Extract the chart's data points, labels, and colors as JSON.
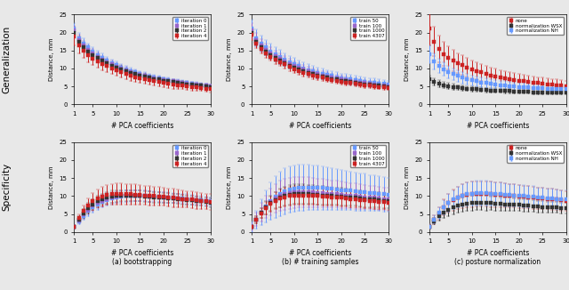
{
  "x": [
    1,
    2,
    3,
    4,
    5,
    6,
    7,
    8,
    9,
    10,
    11,
    12,
    13,
    14,
    15,
    16,
    17,
    18,
    19,
    20,
    21,
    22,
    23,
    24,
    25,
    26,
    27,
    28,
    29,
    30
  ],
  "gen_iter0_mean": [
    21.0,
    18.5,
    17.0,
    15.8,
    14.8,
    13.8,
    13.0,
    12.2,
    11.5,
    10.9,
    10.3,
    9.8,
    9.3,
    8.9,
    8.5,
    8.1,
    7.8,
    7.5,
    7.2,
    6.9,
    6.7,
    6.5,
    6.3,
    6.1,
    5.9,
    5.7,
    5.6,
    5.4,
    5.3,
    5.1
  ],
  "gen_iter0_err": [
    1.5,
    1.4,
    1.3,
    1.2,
    1.2,
    1.1,
    1.1,
    1.0,
    1.0,
    1.0,
    0.9,
    0.9,
    0.9,
    0.8,
    0.8,
    0.8,
    0.7,
    0.7,
    0.7,
    0.7,
    0.7,
    0.6,
    0.6,
    0.6,
    0.6,
    0.6,
    0.6,
    0.6,
    0.5,
    0.5
  ],
  "gen_iter1_mean": [
    20.5,
    18.0,
    16.5,
    15.3,
    14.3,
    13.3,
    12.5,
    11.8,
    11.1,
    10.5,
    10.0,
    9.5,
    9.0,
    8.6,
    8.2,
    7.9,
    7.6,
    7.3,
    7.0,
    6.8,
    6.6,
    6.4,
    6.2,
    6.0,
    5.8,
    5.6,
    5.5,
    5.3,
    5.2,
    5.0
  ],
  "gen_iter1_err": [
    1.4,
    1.3,
    1.2,
    1.2,
    1.1,
    1.1,
    1.0,
    1.0,
    1.0,
    0.9,
    0.9,
    0.9,
    0.8,
    0.8,
    0.8,
    0.8,
    0.7,
    0.7,
    0.7,
    0.7,
    0.7,
    0.6,
    0.6,
    0.6,
    0.6,
    0.6,
    0.6,
    0.5,
    0.5,
    0.5
  ],
  "gen_iter2_mean": [
    20.0,
    17.5,
    16.0,
    14.8,
    13.8,
    13.0,
    12.2,
    11.5,
    10.8,
    10.2,
    9.7,
    9.2,
    8.8,
    8.4,
    8.0,
    7.7,
    7.4,
    7.1,
    6.9,
    6.6,
    6.4,
    6.2,
    6.0,
    5.8,
    5.6,
    5.5,
    5.3,
    5.2,
    5.0,
    4.9
  ],
  "gen_iter2_err": [
    1.3,
    1.2,
    1.2,
    1.1,
    1.1,
    1.0,
    1.0,
    1.0,
    0.9,
    0.9,
    0.9,
    0.8,
    0.8,
    0.8,
    0.8,
    0.7,
    0.7,
    0.7,
    0.7,
    0.6,
    0.6,
    0.6,
    0.6,
    0.6,
    0.6,
    0.5,
    0.5,
    0.5,
    0.5,
    0.5
  ],
  "gen_iter4_mean": [
    19.0,
    16.5,
    15.0,
    13.8,
    12.8,
    12.0,
    11.3,
    10.6,
    10.0,
    9.4,
    8.9,
    8.4,
    8.0,
    7.6,
    7.3,
    7.0,
    6.7,
    6.4,
    6.2,
    5.9,
    5.7,
    5.5,
    5.4,
    5.2,
    5.0,
    4.9,
    4.7,
    4.6,
    4.4,
    4.3
  ],
  "gen_iter4_err": [
    2.5,
    2.3,
    2.1,
    2.0,
    1.9,
    1.8,
    1.7,
    1.7,
    1.6,
    1.5,
    1.5,
    1.4,
    1.4,
    1.3,
    1.3,
    1.3,
    1.2,
    1.2,
    1.2,
    1.1,
    1.1,
    1.1,
    1.0,
    1.0,
    1.0,
    1.0,
    1.0,
    0.9,
    0.9,
    0.9
  ],
  "gen_train50_mean": [
    21.0,
    18.5,
    17.0,
    15.8,
    14.8,
    14.0,
    13.2,
    12.5,
    11.8,
    11.2,
    10.6,
    10.1,
    9.6,
    9.2,
    8.8,
    8.5,
    8.2,
    7.9,
    7.6,
    7.3,
    7.1,
    6.9,
    6.7,
    6.5,
    6.3,
    6.1,
    6.0,
    5.8,
    5.7,
    5.5
  ],
  "gen_train50_err": [
    2.5,
    2.3,
    2.2,
    2.1,
    2.0,
    1.9,
    1.9,
    1.8,
    1.7,
    1.7,
    1.6,
    1.6,
    1.5,
    1.5,
    1.5,
    1.4,
    1.4,
    1.4,
    1.3,
    1.3,
    1.3,
    1.3,
    1.2,
    1.2,
    1.2,
    1.2,
    1.2,
    1.1,
    1.1,
    1.1
  ],
  "gen_train100_mean": [
    20.5,
    18.0,
    16.5,
    15.3,
    14.3,
    13.5,
    12.7,
    12.0,
    11.3,
    10.7,
    10.2,
    9.7,
    9.2,
    8.8,
    8.4,
    8.1,
    7.8,
    7.5,
    7.2,
    6.9,
    6.7,
    6.5,
    6.3,
    6.1,
    5.9,
    5.7,
    5.6,
    5.4,
    5.3,
    5.1
  ],
  "gen_train100_err": [
    2.0,
    1.8,
    1.7,
    1.6,
    1.6,
    1.5,
    1.5,
    1.4,
    1.4,
    1.3,
    1.3,
    1.2,
    1.2,
    1.2,
    1.1,
    1.1,
    1.1,
    1.0,
    1.0,
    1.0,
    1.0,
    0.9,
    0.9,
    0.9,
    0.9,
    0.9,
    0.8,
    0.8,
    0.8,
    0.8
  ],
  "gen_train1000_mean": [
    20.0,
    17.5,
    16.0,
    14.8,
    13.8,
    13.0,
    12.2,
    11.5,
    10.8,
    10.2,
    9.7,
    9.2,
    8.8,
    8.4,
    8.0,
    7.7,
    7.4,
    7.1,
    6.9,
    6.6,
    6.4,
    6.2,
    6.0,
    5.8,
    5.6,
    5.5,
    5.3,
    5.2,
    5.0,
    4.9
  ],
  "gen_train1000_err": [
    1.2,
    1.1,
    1.1,
    1.0,
    1.0,
    1.0,
    0.9,
    0.9,
    0.9,
    0.8,
    0.8,
    0.8,
    0.8,
    0.7,
    0.7,
    0.7,
    0.7,
    0.7,
    0.6,
    0.6,
    0.6,
    0.6,
    0.6,
    0.6,
    0.5,
    0.5,
    0.5,
    0.5,
    0.5,
    0.5
  ],
  "gen_train4307_mean": [
    19.5,
    17.0,
    15.5,
    14.3,
    13.3,
    12.5,
    11.8,
    11.1,
    10.4,
    9.8,
    9.3,
    8.8,
    8.4,
    8.0,
    7.7,
    7.4,
    7.1,
    6.8,
    6.6,
    6.3,
    6.1,
    5.9,
    5.7,
    5.5,
    5.3,
    5.2,
    5.0,
    4.9,
    4.7,
    4.6
  ],
  "gen_train4307_err": [
    1.5,
    1.4,
    1.3,
    1.3,
    1.2,
    1.2,
    1.1,
    1.1,
    1.1,
    1.0,
    1.0,
    1.0,
    0.9,
    0.9,
    0.9,
    0.9,
    0.8,
    0.8,
    0.8,
    0.8,
    0.7,
    0.7,
    0.7,
    0.7,
    0.7,
    0.7,
    0.6,
    0.6,
    0.6,
    0.6
  ],
  "gen_none_mean": [
    21.0,
    17.5,
    15.5,
    14.0,
    13.0,
    12.2,
    11.5,
    10.9,
    10.3,
    9.8,
    9.3,
    8.9,
    8.5,
    8.1,
    7.8,
    7.5,
    7.3,
    7.0,
    6.8,
    6.6,
    6.4,
    6.2,
    6.1,
    5.9,
    5.8,
    5.6,
    5.5,
    5.4,
    5.3,
    5.1
  ],
  "gen_none_err": [
    4.5,
    4.0,
    3.7,
    3.4,
    3.2,
    3.0,
    2.8,
    2.7,
    2.6,
    2.5,
    2.4,
    2.3,
    2.2,
    2.1,
    2.1,
    2.0,
    2.0,
    1.9,
    1.9,
    1.8,
    1.8,
    1.7,
    1.7,
    1.7,
    1.6,
    1.6,
    1.6,
    1.5,
    1.5,
    1.5
  ],
  "gen_wsx_mean": [
    7.0,
    6.3,
    5.8,
    5.4,
    5.1,
    4.9,
    4.7,
    4.5,
    4.4,
    4.3,
    4.2,
    4.1,
    4.0,
    3.9,
    3.9,
    3.8,
    3.7,
    3.7,
    3.6,
    3.6,
    3.5,
    3.5,
    3.4,
    3.4,
    3.3,
    3.3,
    3.3,
    3.2,
    3.2,
    3.2
  ],
  "gen_wsx_err": [
    1.0,
    0.9,
    0.9,
    0.8,
    0.8,
    0.8,
    0.7,
    0.7,
    0.7,
    0.7,
    0.7,
    0.6,
    0.6,
    0.6,
    0.6,
    0.6,
    0.6,
    0.6,
    0.5,
    0.5,
    0.5,
    0.5,
    0.5,
    0.5,
    0.5,
    0.5,
    0.5,
    0.5,
    0.4,
    0.4
  ],
  "gen_nh_mean": [
    14.0,
    12.0,
    10.8,
    9.8,
    9.0,
    8.4,
    7.9,
    7.4,
    7.0,
    6.7,
    6.4,
    6.1,
    5.9,
    5.7,
    5.5,
    5.3,
    5.2,
    5.1,
    5.0,
    4.9,
    4.8,
    4.7,
    4.6,
    4.5,
    4.5,
    4.4,
    4.4,
    4.3,
    4.3,
    4.2
  ],
  "gen_nh_err": [
    2.5,
    2.2,
    2.0,
    1.9,
    1.8,
    1.7,
    1.6,
    1.6,
    1.5,
    1.4,
    1.4,
    1.3,
    1.3,
    1.3,
    1.2,
    1.2,
    1.2,
    1.1,
    1.1,
    1.1,
    1.1,
    1.0,
    1.0,
    1.0,
    1.0,
    1.0,
    1.0,
    0.9,
    0.9,
    0.9
  ],
  "spec_iter0_mean": [
    1.5,
    3.0,
    4.5,
    5.8,
    6.9,
    7.7,
    8.4,
    8.9,
    9.3,
    9.6,
    9.8,
    10.0,
    10.0,
    10.1,
    10.1,
    10.0,
    9.9,
    9.9,
    9.8,
    9.7,
    9.6,
    9.5,
    9.4,
    9.3,
    9.2,
    9.0,
    8.9,
    8.8,
    8.6,
    8.5
  ],
  "spec_iter0_err": [
    0.5,
    0.8,
    1.1,
    1.3,
    1.4,
    1.5,
    1.6,
    1.6,
    1.6,
    1.6,
    1.6,
    1.6,
    1.6,
    1.5,
    1.5,
    1.5,
    1.5,
    1.4,
    1.4,
    1.4,
    1.4,
    1.3,
    1.3,
    1.3,
    1.3,
    1.3,
    1.2,
    1.2,
    1.2,
    1.2
  ],
  "spec_iter1_mean": [
    1.5,
    3.2,
    4.8,
    6.2,
    7.3,
    8.1,
    8.7,
    9.2,
    9.6,
    9.8,
    10.0,
    10.0,
    10.1,
    10.1,
    10.0,
    10.0,
    9.9,
    9.8,
    9.7,
    9.6,
    9.5,
    9.4,
    9.3,
    9.1,
    9.0,
    8.9,
    8.7,
    8.6,
    8.5,
    8.3
  ],
  "spec_iter1_err": [
    0.5,
    0.8,
    1.1,
    1.3,
    1.4,
    1.5,
    1.6,
    1.6,
    1.6,
    1.6,
    1.6,
    1.6,
    1.5,
    1.5,
    1.5,
    1.5,
    1.5,
    1.4,
    1.4,
    1.4,
    1.4,
    1.3,
    1.3,
    1.3,
    1.3,
    1.2,
    1.2,
    1.2,
    1.2,
    1.2
  ],
  "spec_iter2_mean": [
    1.5,
    3.5,
    5.2,
    6.6,
    7.7,
    8.5,
    9.1,
    9.5,
    9.8,
    10.0,
    10.1,
    10.1,
    10.1,
    10.1,
    10.0,
    9.9,
    9.8,
    9.7,
    9.6,
    9.5,
    9.4,
    9.3,
    9.2,
    9.0,
    8.9,
    8.8,
    8.6,
    8.5,
    8.3,
    8.2
  ],
  "spec_iter2_err": [
    0.5,
    0.9,
    1.2,
    1.4,
    1.5,
    1.6,
    1.6,
    1.7,
    1.7,
    1.7,
    1.6,
    1.6,
    1.6,
    1.6,
    1.5,
    1.5,
    1.5,
    1.5,
    1.4,
    1.4,
    1.4,
    1.3,
    1.3,
    1.3,
    1.3,
    1.2,
    1.2,
    1.2,
    1.2,
    1.2
  ],
  "spec_iter4_mean": [
    1.5,
    3.8,
    5.8,
    7.3,
    8.5,
    9.3,
    9.9,
    10.3,
    10.5,
    10.6,
    10.6,
    10.5,
    10.5,
    10.4,
    10.3,
    10.2,
    10.1,
    10.0,
    9.9,
    9.8,
    9.6,
    9.5,
    9.4,
    9.2,
    9.1,
    9.0,
    8.8,
    8.7,
    8.5,
    8.4
  ],
  "spec_iter4_err": [
    0.5,
    1.0,
    1.5,
    2.0,
    2.3,
    2.5,
    2.7,
    2.8,
    2.9,
    2.9,
    2.9,
    2.9,
    2.8,
    2.8,
    2.8,
    2.7,
    2.7,
    2.6,
    2.6,
    2.5,
    2.5,
    2.5,
    2.4,
    2.4,
    2.3,
    2.3,
    2.3,
    2.2,
    2.2,
    2.2
  ],
  "spec_train50_mean": [
    1.5,
    3.5,
    5.5,
    7.2,
    8.7,
    9.8,
    10.7,
    11.3,
    11.8,
    12.1,
    12.3,
    12.4,
    12.4,
    12.4,
    12.3,
    12.2,
    12.1,
    12.0,
    11.9,
    11.7,
    11.6,
    11.5,
    11.3,
    11.2,
    11.1,
    10.9,
    10.8,
    10.7,
    10.5,
    10.4
  ],
  "spec_train50_err": [
    1.5,
    2.5,
    3.5,
    4.5,
    5.2,
    5.8,
    6.2,
    6.4,
    6.5,
    6.5,
    6.4,
    6.4,
    6.3,
    6.2,
    6.1,
    6.0,
    5.9,
    5.8,
    5.7,
    5.6,
    5.5,
    5.4,
    5.3,
    5.2,
    5.1,
    5.0,
    4.9,
    4.8,
    4.8,
    4.7
  ],
  "spec_train100_mean": [
    1.5,
    3.5,
    5.5,
    7.0,
    8.3,
    9.3,
    10.0,
    10.5,
    10.8,
    11.0,
    11.1,
    11.1,
    11.1,
    11.0,
    10.9,
    10.8,
    10.7,
    10.6,
    10.5,
    10.4,
    10.2,
    10.1,
    10.0,
    9.9,
    9.7,
    9.6,
    9.5,
    9.4,
    9.2,
    9.1
  ],
  "spec_train100_err": [
    1.0,
    1.8,
    2.5,
    3.2,
    3.7,
    4.0,
    4.2,
    4.3,
    4.3,
    4.3,
    4.3,
    4.2,
    4.2,
    4.1,
    4.0,
    3.9,
    3.9,
    3.8,
    3.7,
    3.7,
    3.6,
    3.5,
    3.5,
    3.4,
    3.4,
    3.3,
    3.2,
    3.2,
    3.1,
    3.1
  ],
  "spec_train1000_mean": [
    1.5,
    3.5,
    5.3,
    6.8,
    8.0,
    8.9,
    9.5,
    10.0,
    10.3,
    10.5,
    10.5,
    10.5,
    10.5,
    10.4,
    10.3,
    10.2,
    10.1,
    10.0,
    9.9,
    9.8,
    9.7,
    9.6,
    9.5,
    9.3,
    9.2,
    9.1,
    9.0,
    8.9,
    8.7,
    8.6
  ],
  "spec_train1000_err": [
    0.5,
    1.0,
    1.4,
    1.8,
    2.1,
    2.3,
    2.5,
    2.6,
    2.7,
    2.7,
    2.7,
    2.7,
    2.6,
    2.6,
    2.6,
    2.5,
    2.5,
    2.4,
    2.4,
    2.4,
    2.3,
    2.3,
    2.2,
    2.2,
    2.2,
    2.1,
    2.1,
    2.1,
    2.0,
    2.0
  ],
  "spec_train4307_mean": [
    1.5,
    3.5,
    5.2,
    6.6,
    7.8,
    8.7,
    9.3,
    9.7,
    10.0,
    10.2,
    10.2,
    10.2,
    10.1,
    10.1,
    10.0,
    9.9,
    9.8,
    9.7,
    9.6,
    9.5,
    9.3,
    9.2,
    9.1,
    8.9,
    8.8,
    8.7,
    8.5,
    8.4,
    8.3,
    8.1
  ],
  "spec_train4307_err": [
    0.5,
    1.0,
    1.4,
    1.8,
    2.1,
    2.3,
    2.5,
    2.6,
    2.6,
    2.7,
    2.6,
    2.6,
    2.6,
    2.5,
    2.5,
    2.5,
    2.4,
    2.4,
    2.3,
    2.3,
    2.2,
    2.2,
    2.1,
    2.1,
    2.1,
    2.0,
    2.0,
    2.0,
    1.9,
    1.9
  ],
  "spec_none_mean": [
    1.5,
    3.5,
    5.2,
    6.8,
    8.0,
    8.9,
    9.5,
    10.0,
    10.3,
    10.5,
    10.6,
    10.6,
    10.6,
    10.5,
    10.4,
    10.3,
    10.2,
    10.1,
    10.0,
    9.9,
    9.8,
    9.7,
    9.5,
    9.4,
    9.3,
    9.2,
    9.1,
    9.0,
    8.8,
    8.7
  ],
  "spec_none_err": [
    0.6,
    1.2,
    1.7,
    2.2,
    2.6,
    2.9,
    3.1,
    3.3,
    3.4,
    3.5,
    3.5,
    3.5,
    3.5,
    3.5,
    3.4,
    3.4,
    3.3,
    3.3,
    3.2,
    3.2,
    3.1,
    3.1,
    3.0,
    3.0,
    2.9,
    2.9,
    2.9,
    2.8,
    2.8,
    2.7
  ],
  "spec_wsx_mean": [
    1.5,
    3.0,
    4.3,
    5.4,
    6.2,
    6.8,
    7.3,
    7.6,
    7.9,
    8.0,
    8.1,
    8.1,
    8.0,
    8.0,
    7.9,
    7.8,
    7.7,
    7.7,
    7.6,
    7.5,
    7.4,
    7.3,
    7.2,
    7.1,
    7.0,
    6.9,
    6.8,
    6.8,
    6.7,
    6.6
  ],
  "spec_wsx_err": [
    0.5,
    0.9,
    1.2,
    1.5,
    1.7,
    1.8,
    1.9,
    2.0,
    2.0,
    2.0,
    2.0,
    2.0,
    2.0,
    1.9,
    1.9,
    1.9,
    1.8,
    1.8,
    1.8,
    1.7,
    1.7,
    1.7,
    1.6,
    1.6,
    1.6,
    1.5,
    1.5,
    1.5,
    1.5,
    1.4
  ],
  "spec_nh_mean": [
    1.5,
    3.5,
    5.3,
    6.9,
    8.1,
    9.0,
    9.7,
    10.2,
    10.5,
    10.7,
    10.8,
    10.8,
    10.8,
    10.7,
    10.6,
    10.5,
    10.4,
    10.3,
    10.2,
    10.1,
    10.0,
    9.9,
    9.8,
    9.6,
    9.5,
    9.4,
    9.3,
    9.2,
    9.1,
    9.0
  ],
  "spec_nh_err": [
    0.6,
    1.1,
    1.6,
    2.0,
    2.4,
    2.7,
    2.9,
    3.1,
    3.2,
    3.3,
    3.4,
    3.4,
    3.4,
    3.3,
    3.3,
    3.2,
    3.2,
    3.1,
    3.1,
    3.0,
    3.0,
    2.9,
    2.9,
    2.8,
    2.8,
    2.7,
    2.7,
    2.7,
    2.6,
    2.6
  ],
  "col_iter0": "#6699ff",
  "col_iter1": "#9966cc",
  "col_iter2": "#333333",
  "col_iter4": "#cc2222",
  "col_train50": "#6699ff",
  "col_train100": "#9966cc",
  "col_train1000": "#333333",
  "col_train4307": "#cc2222",
  "col_none": "#cc2222",
  "col_wsx": "#333333",
  "col_nh": "#6699ff",
  "xticks": [
    1,
    5,
    10,
    15,
    20,
    25,
    30
  ],
  "ylim": [
    0,
    25
  ],
  "yticks": [
    0,
    5,
    10,
    15,
    20,
    25
  ],
  "xlabel": "# PCA coefficients",
  "ylabel": "Distance, mm",
  "row_labels": [
    "Generalization",
    "Specificity"
  ],
  "col_subtitles": [
    "(a) bootstrapping",
    "(b) # training samples",
    "(c) posture normalization"
  ],
  "legend_col1_labels": [
    "iteration 0",
    "iteration 1",
    "iteration 2",
    "iteration 4"
  ],
  "legend_col2_labels": [
    "train 50",
    "train 100",
    "train 1000",
    "train 4307"
  ],
  "legend_col3_labels": [
    "none",
    "normalization WSX",
    "normalization NH"
  ],
  "bg_color": "#e8e8e8",
  "fig_bg": "#e8e8e8",
  "ms": 2.5,
  "capsize": 1.5,
  "lw": 0.7
}
